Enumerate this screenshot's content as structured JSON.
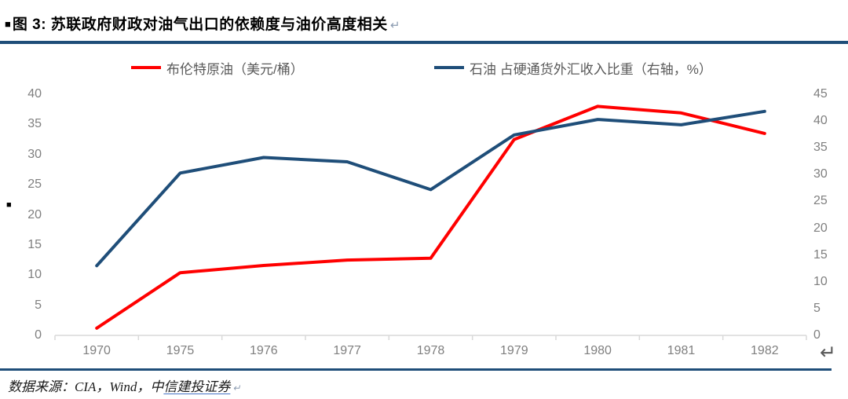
{
  "header": {
    "bullet": "■",
    "title": "图 3: 苏联政府财政对油气出口的依赖度与油价高度相关",
    "return_mark": "↵"
  },
  "side": {
    "stray_bullet": "■"
  },
  "corner_return_mark": "↵",
  "footer": {
    "source_prefix": "数据来源：CIA，Wind，中",
    "source_link": "信建投证券",
    "return_mark": "↵"
  },
  "colors": {
    "rule_navy": "#1F4E79",
    "brent_red": "#FF0000",
    "share_blue": "#1F4E79",
    "axis_line": "#D9D9D9",
    "axis_text": "#7F7F7F",
    "legend_text": "#595959",
    "link_underline": "#4472C4"
  },
  "chart_data": {
    "type": "line",
    "title": "苏联政府财政对油气出口的依赖度与油价高度相关",
    "categories": [
      "1970",
      "1975",
      "1976",
      "1977",
      "1978",
      "1979",
      "1980",
      "1981",
      "1982"
    ],
    "series": [
      {
        "name": "布伦特原油（美元/桶）",
        "axis": "left",
        "color": "#FF0000",
        "values": [
          1.2,
          10.4,
          11.6,
          12.5,
          12.8,
          32.5,
          38.0,
          36.9,
          33.5
        ]
      },
      {
        "name": "石油 占硬通货外汇收入比重（右轴，%）",
        "axis": "right",
        "color": "#1F4E79",
        "values": [
          13.0,
          30.3,
          33.2,
          32.4,
          27.2,
          37.4,
          40.3,
          39.3,
          41.8
        ]
      }
    ],
    "left_axis": {
      "min": 0,
      "max": 40,
      "step": 5,
      "ticks": [
        0,
        5,
        10,
        15,
        20,
        25,
        30,
        35,
        40
      ]
    },
    "right_axis": {
      "min": 0,
      "max": 45,
      "step": 5,
      "ticks": [
        0,
        5,
        10,
        15,
        20,
        25,
        30,
        35,
        40,
        45
      ]
    },
    "legend_position": "top",
    "grid": false
  }
}
